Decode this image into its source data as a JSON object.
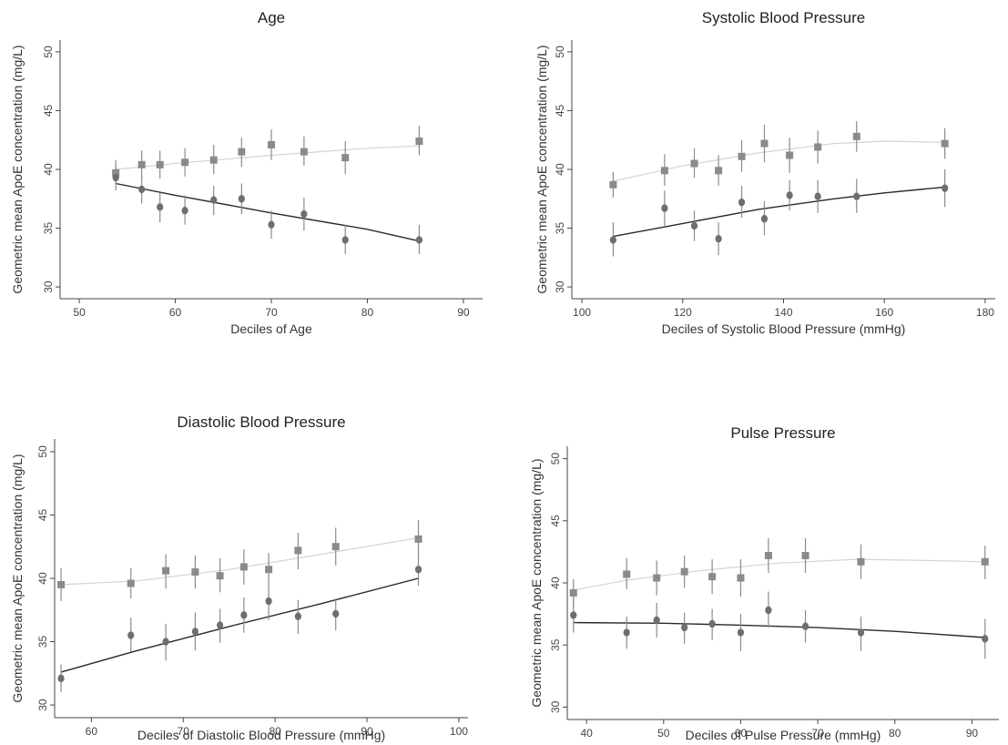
{
  "chart_data": [
    {
      "type": "scatter",
      "title": "Age",
      "xlabel": "Deciles of Age",
      "ylabel": "Geometric mean ApoE concentration  (mg/L)",
      "xlim": [
        48,
        92
      ],
      "ylim": [
        29,
        51
      ],
      "xticks": [
        50,
        60,
        70,
        80,
        90
      ],
      "yticks": [
        30,
        35,
        40,
        45,
        50
      ],
      "series": [
        {
          "color": "#8a8a8a",
          "marker": "square",
          "line_color": "#d4d4d4",
          "points": [
            {
              "x": 53.8,
              "y": 39.7,
              "lo": 38.7,
              "hi": 40.8
            },
            {
              "x": 56.5,
              "y": 40.4,
              "lo": 39.2,
              "hi": 41.6
            },
            {
              "x": 58.4,
              "y": 40.4,
              "lo": 39.2,
              "hi": 41.6
            },
            {
              "x": 61.0,
              "y": 40.6,
              "lo": 39.4,
              "hi": 41.8
            },
            {
              "x": 64.0,
              "y": 40.8,
              "lo": 39.6,
              "hi": 42.1
            },
            {
              "x": 66.9,
              "y": 41.5,
              "lo": 40.2,
              "hi": 42.7
            },
            {
              "x": 70.0,
              "y": 42.1,
              "lo": 40.8,
              "hi": 43.4
            },
            {
              "x": 73.4,
              "y": 41.5,
              "lo": 40.3,
              "hi": 42.8
            },
            {
              "x": 77.7,
              "y": 41.0,
              "lo": 39.6,
              "hi": 42.4
            },
            {
              "x": 85.4,
              "y": 42.4,
              "lo": 41.2,
              "hi": 43.7
            }
          ],
          "fit": [
            [
              53.8,
              40.0
            ],
            [
              60,
              40.5
            ],
            [
              70,
              41.2
            ],
            [
              80,
              41.8
            ],
            [
              85.4,
              42.0
            ]
          ]
        },
        {
          "color": "#6e6e6e",
          "marker": "circle",
          "line_color": "#2a2a2a",
          "points": [
            {
              "x": 53.8,
              "y": 39.3,
              "lo": 38.2,
              "hi": 40.3
            },
            {
              "x": 56.5,
              "y": 38.3,
              "lo": 37.1,
              "hi": 39.5
            },
            {
              "x": 58.4,
              "y": 36.8,
              "lo": 35.5,
              "hi": 38.0
            },
            {
              "x": 61.0,
              "y": 36.5,
              "lo": 35.3,
              "hi": 37.8
            },
            {
              "x": 64.0,
              "y": 37.4,
              "lo": 36.1,
              "hi": 38.6
            },
            {
              "x": 66.9,
              "y": 37.5,
              "lo": 36.2,
              "hi": 38.8
            },
            {
              "x": 70.0,
              "y": 35.3,
              "lo": 34.1,
              "hi": 36.5
            },
            {
              "x": 73.4,
              "y": 36.2,
              "lo": 34.8,
              "hi": 37.6
            },
            {
              "x": 77.7,
              "y": 34.0,
              "lo": 32.8,
              "hi": 35.3
            },
            {
              "x": 85.4,
              "y": 34.0,
              "lo": 32.8,
              "hi": 35.3
            }
          ],
          "fit": [
            [
              53.8,
              38.8
            ],
            [
              60,
              37.8
            ],
            [
              70,
              36.3
            ],
            [
              80,
              34.9
            ],
            [
              85.4,
              33.9
            ]
          ]
        }
      ]
    },
    {
      "type": "scatter",
      "title": "Systolic Blood Pressure",
      "xlabel": "Deciles of  Systolic Blood Pressure (mmHg)",
      "ylabel": "Geometric mean ApoE concentration  (mg/L)",
      "xlim": [
        98,
        182
      ],
      "ylim": [
        29,
        51
      ],
      "xticks": [
        100,
        120,
        140,
        160,
        180
      ],
      "yticks": [
        30,
        35,
        40,
        45,
        50
      ],
      "series": [
        {
          "color": "#8a8a8a",
          "marker": "square",
          "line_color": "#d4d4d4",
          "points": [
            {
              "x": 106.2,
              "y": 38.7,
              "lo": 37.6,
              "hi": 39.8
            },
            {
              "x": 116.4,
              "y": 39.9,
              "lo": 38.6,
              "hi": 41.3
            },
            {
              "x": 122.3,
              "y": 40.5,
              "lo": 39.3,
              "hi": 41.8
            },
            {
              "x": 127.1,
              "y": 39.9,
              "lo": 38.6,
              "hi": 41.2
            },
            {
              "x": 131.7,
              "y": 41.1,
              "lo": 39.8,
              "hi": 42.5
            },
            {
              "x": 136.2,
              "y": 42.2,
              "lo": 40.6,
              "hi": 43.8
            },
            {
              "x": 141.2,
              "y": 41.2,
              "lo": 39.7,
              "hi": 42.7
            },
            {
              "x": 146.8,
              "y": 41.9,
              "lo": 40.5,
              "hi": 43.3
            },
            {
              "x": 154.5,
              "y": 42.8,
              "lo": 41.5,
              "hi": 44.1
            },
            {
              "x": 172.0,
              "y": 42.2,
              "lo": 40.9,
              "hi": 43.5
            }
          ],
          "fit": [
            [
              106.2,
              39.0
            ],
            [
              120,
              40.3
            ],
            [
              135,
              41.4
            ],
            [
              150,
              42.2
            ],
            [
              160,
              42.4
            ],
            [
              172.0,
              42.3
            ]
          ]
        },
        {
          "color": "#6e6e6e",
          "marker": "circle",
          "line_color": "#2a2a2a",
          "points": [
            {
              "x": 106.2,
              "y": 34.0,
              "lo": 32.6,
              "hi": 35.5
            },
            {
              "x": 116.4,
              "y": 36.7,
              "lo": 35.2,
              "hi": 38.2
            },
            {
              "x": 122.3,
              "y": 35.2,
              "lo": 33.9,
              "hi": 36.5
            },
            {
              "x": 127.1,
              "y": 34.1,
              "lo": 32.7,
              "hi": 35.5
            },
            {
              "x": 131.7,
              "y": 37.2,
              "lo": 35.9,
              "hi": 38.6
            },
            {
              "x": 136.2,
              "y": 35.8,
              "lo": 34.4,
              "hi": 37.3
            },
            {
              "x": 141.2,
              "y": 37.8,
              "lo": 36.5,
              "hi": 39.1
            },
            {
              "x": 146.8,
              "y": 37.7,
              "lo": 36.3,
              "hi": 39.1
            },
            {
              "x": 154.5,
              "y": 37.7,
              "lo": 36.3,
              "hi": 39.2
            },
            {
              "x": 172.0,
              "y": 38.4,
              "lo": 36.8,
              "hi": 40.0
            }
          ],
          "fit": [
            [
              106.2,
              34.3
            ],
            [
              120,
              35.4
            ],
            [
              135,
              36.6
            ],
            [
              150,
              37.5
            ],
            [
              160,
              38.0
            ],
            [
              172.0,
              38.5
            ]
          ]
        }
      ]
    },
    {
      "type": "scatter",
      "title": "Diastolic Blood Pressure",
      "xlabel": "Deciles of  Diastolic Blood Pressure (mmHg)",
      "ylabel": "Geometric mean ApoE concentration  (mg/L)",
      "xlim": [
        56,
        101
      ],
      "ylim": [
        29,
        51
      ],
      "xticks": [
        60,
        70,
        80,
        90,
        100
      ],
      "yticks": [
        30,
        35,
        40,
        45,
        50
      ],
      "series": [
        {
          "color": "#8a8a8a",
          "marker": "square",
          "line_color": "#d4d4d4",
          "points": [
            {
              "x": 56.7,
              "y": 39.5,
              "lo": 38.2,
              "hi": 40.8
            },
            {
              "x": 64.3,
              "y": 39.6,
              "lo": 38.4,
              "hi": 40.8
            },
            {
              "x": 68.1,
              "y": 40.6,
              "lo": 39.2,
              "hi": 41.9
            },
            {
              "x": 71.3,
              "y": 40.5,
              "lo": 39.2,
              "hi": 41.8
            },
            {
              "x": 74.0,
              "y": 40.2,
              "lo": 38.9,
              "hi": 41.6
            },
            {
              "x": 76.6,
              "y": 40.9,
              "lo": 39.5,
              "hi": 42.3
            },
            {
              "x": 79.3,
              "y": 40.7,
              "lo": 39.3,
              "hi": 42.0
            },
            {
              "x": 82.5,
              "y": 42.2,
              "lo": 40.7,
              "hi": 43.6
            },
            {
              "x": 86.6,
              "y": 42.5,
              "lo": 41.0,
              "hi": 44.0
            },
            {
              "x": 95.6,
              "y": 43.1,
              "lo": 41.5,
              "hi": 44.6
            }
          ],
          "fit": [
            [
              56.7,
              39.5
            ],
            [
              65,
              39.8
            ],
            [
              75,
              40.7
            ],
            [
              85,
              41.9
            ],
            [
              95.6,
              43.2
            ]
          ]
        },
        {
          "color": "#6e6e6e",
          "marker": "circle",
          "line_color": "#2a2a2a",
          "points": [
            {
              "x": 56.7,
              "y": 32.1,
              "lo": 31.0,
              "hi": 33.2
            },
            {
              "x": 64.3,
              "y": 35.5,
              "lo": 34.2,
              "hi": 36.9
            },
            {
              "x": 68.1,
              "y": 35.0,
              "lo": 33.5,
              "hi": 36.4
            },
            {
              "x": 71.3,
              "y": 35.8,
              "lo": 34.3,
              "hi": 37.3
            },
            {
              "x": 74.0,
              "y": 36.3,
              "lo": 34.9,
              "hi": 37.6
            },
            {
              "x": 76.6,
              "y": 37.1,
              "lo": 35.7,
              "hi": 38.5
            },
            {
              "x": 79.3,
              "y": 38.2,
              "lo": 36.7,
              "hi": 39.6
            },
            {
              "x": 82.5,
              "y": 37.0,
              "lo": 35.6,
              "hi": 38.3
            },
            {
              "x": 86.6,
              "y": 37.2,
              "lo": 35.9,
              "hi": 38.4
            },
            {
              "x": 95.6,
              "y": 40.7,
              "lo": 39.4,
              "hi": 42.0
            }
          ],
          "fit": [
            [
              56.7,
              32.6
            ],
            [
              65,
              34.3
            ],
            [
              75,
              36.2
            ],
            [
              85,
              38.0
            ],
            [
              95.6,
              40.0
            ]
          ]
        }
      ]
    },
    {
      "type": "scatter",
      "title": "Pulse Pressure",
      "xlabel": "Deciles of  Pulse  Pressure (mmHg)",
      "ylabel": "Geometric mean ApoE concentration  (mg/L)",
      "xlim": [
        37.5,
        93.5
      ],
      "ylim": [
        29,
        51
      ],
      "xticks": [
        40,
        50,
        60,
        70,
        80,
        90
      ],
      "yticks": [
        30,
        35,
        40,
        45,
        50
      ],
      "series": [
        {
          "color": "#8a8a8a",
          "marker": "square",
          "line_color": "#d4d4d4",
          "points": [
            {
              "x": 38.3,
              "y": 39.2,
              "lo": 38.0,
              "hi": 40.3
            },
            {
              "x": 45.2,
              "y": 40.7,
              "lo": 39.5,
              "hi": 42.0
            },
            {
              "x": 49.1,
              "y": 40.4,
              "lo": 39.0,
              "hi": 41.8
            },
            {
              "x": 52.7,
              "y": 40.9,
              "lo": 39.6,
              "hi": 42.2
            },
            {
              "x": 56.3,
              "y": 40.5,
              "lo": 39.1,
              "hi": 41.9
            },
            {
              "x": 60.0,
              "y": 40.4,
              "lo": 38.9,
              "hi": 41.9
            },
            {
              "x": 63.6,
              "y": 42.2,
              "lo": 40.8,
              "hi": 43.6
            },
            {
              "x": 68.4,
              "y": 42.2,
              "lo": 40.8,
              "hi": 43.6
            },
            {
              "x": 75.6,
              "y": 41.7,
              "lo": 40.3,
              "hi": 43.1
            },
            {
              "x": 91.7,
              "y": 41.7,
              "lo": 40.3,
              "hi": 43.0
            }
          ],
          "fit": [
            [
              38.3,
              39.4
            ],
            [
              45,
              40.2
            ],
            [
              55,
              41.0
            ],
            [
              65,
              41.6
            ],
            [
              75,
              41.9
            ],
            [
              85,
              41.8
            ],
            [
              91.7,
              41.7
            ]
          ]
        },
        {
          "color": "#6e6e6e",
          "marker": "circle",
          "line_color": "#2a2a2a",
          "points": [
            {
              "x": 38.3,
              "y": 37.4,
              "lo": 36.0,
              "hi": 38.8
            },
            {
              "x": 45.2,
              "y": 36.0,
              "lo": 34.7,
              "hi": 37.3
            },
            {
              "x": 49.1,
              "y": 37.0,
              "lo": 35.6,
              "hi": 38.4
            },
            {
              "x": 52.7,
              "y": 36.4,
              "lo": 35.1,
              "hi": 37.6
            },
            {
              "x": 56.3,
              "y": 36.7,
              "lo": 35.4,
              "hi": 37.9
            },
            {
              "x": 60.0,
              "y": 36.0,
              "lo": 34.5,
              "hi": 37.5
            },
            {
              "x": 63.6,
              "y": 37.8,
              "lo": 36.4,
              "hi": 39.3
            },
            {
              "x": 68.4,
              "y": 36.5,
              "lo": 35.2,
              "hi": 37.8
            },
            {
              "x": 75.6,
              "y": 36.0,
              "lo": 34.5,
              "hi": 37.3
            },
            {
              "x": 91.7,
              "y": 35.5,
              "lo": 33.9,
              "hi": 37.1
            }
          ],
          "fit": [
            [
              38.3,
              36.8
            ],
            [
              50,
              36.75
            ],
            [
              60,
              36.6
            ],
            [
              70,
              36.4
            ],
            [
              80,
              36.1
            ],
            [
              91.7,
              35.6
            ]
          ]
        }
      ]
    }
  ]
}
